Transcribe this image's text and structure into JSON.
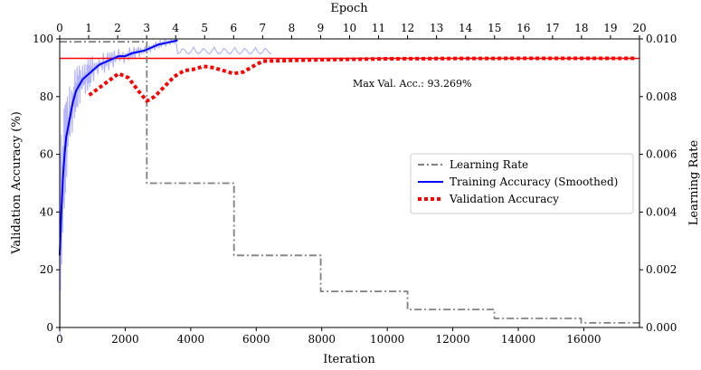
{
  "chart_data": {
    "type": "line",
    "title": "",
    "xlabel": "Iteration",
    "ylabel": "Validation Accuracy (%)",
    "y2label": "Learning Rate",
    "x2label": "Epoch",
    "xlim": [
      0,
      17700
    ],
    "ylim": [
      0,
      100
    ],
    "y2lim": [
      0,
      0.01
    ],
    "x2lim": [
      0,
      20
    ],
    "x_ticks": [
      "0",
      "2000",
      "4000",
      "6000",
      "8000",
      "10000",
      "12000",
      "14000",
      "16000"
    ],
    "y_ticks": [
      "0",
      "20",
      "40",
      "60",
      "80",
      "100"
    ],
    "y2_ticks": [
      "0.000",
      "0.002",
      "0.004",
      "0.006",
      "0.008",
      "0.010"
    ],
    "x2_ticks": [
      "0",
      "1",
      "2",
      "3",
      "4",
      "5",
      "6",
      "7",
      "8",
      "9",
      "10",
      "11",
      "12",
      "13",
      "14",
      "15",
      "16",
      "17",
      "18",
      "19",
      "20"
    ],
    "grid": false,
    "legend_position": "center-right",
    "colors": {
      "training": "#0000ff",
      "training_raw": "#b4b4ff",
      "validation": "#ff0000",
      "learning_rate": "#808080",
      "max_line": "#ff0000"
    },
    "annotation": "Max Val. Acc.: 93.269%",
    "max_val_acc": 93.269,
    "series": [
      {
        "name": "Learning Rate",
        "axis": "right",
        "style": "dash-dot",
        "x": [
          0,
          2660,
          2660,
          5320,
          5320,
          7970,
          7970,
          10620,
          10620,
          13270,
          13270,
          15920,
          15920,
          17700
        ],
        "y": [
          0.0099,
          0.0099,
          0.005,
          0.005,
          0.0025,
          0.0025,
          0.00125,
          0.00125,
          0.000625,
          0.000625,
          0.0003125,
          0.0003125,
          0.00016,
          0.00016
        ]
      },
      {
        "name": "Training Accuracy (Smoothed)",
        "axis": "left",
        "style": "solid",
        "x": [
          0,
          50,
          100,
          150,
          200,
          300,
          400,
          500,
          600,
          700,
          800,
          900,
          1000,
          1200,
          1400,
          1600,
          1800,
          2000,
          2200,
          2400,
          2600,
          2800,
          3000,
          3200,
          3400,
          3600
        ],
        "y": [
          25,
          40,
          52,
          60,
          66,
          72,
          78,
          82,
          84,
          86,
          87,
          88,
          89,
          91,
          92,
          93,
          94,
          94,
          95,
          95.5,
          96,
          97,
          98,
          98.5,
          99,
          99.5
        ]
      },
      {
        "name": "Validation Accuracy",
        "axis": "left",
        "style": "dotted",
        "x": [
          900,
          1200,
          1500,
          1800,
          2100,
          2400,
          2660,
          2900,
          3200,
          3500,
          3800,
          4100,
          4400,
          4700,
          5000,
          5300,
          5600,
          5900,
          6200,
          7000,
          8000,
          10000,
          12000,
          14000,
          16000,
          17600
        ],
        "y": [
          80.5,
          83,
          85.5,
          88,
          86.5,
          82,
          78.5,
          80,
          83.5,
          87,
          89,
          89.5,
          90.5,
          90,
          89,
          88,
          88.5,
          90.5,
          92.3,
          92.5,
          92.8,
          93.1,
          93.2,
          93.25,
          93.26,
          93.27
        ]
      }
    ]
  }
}
